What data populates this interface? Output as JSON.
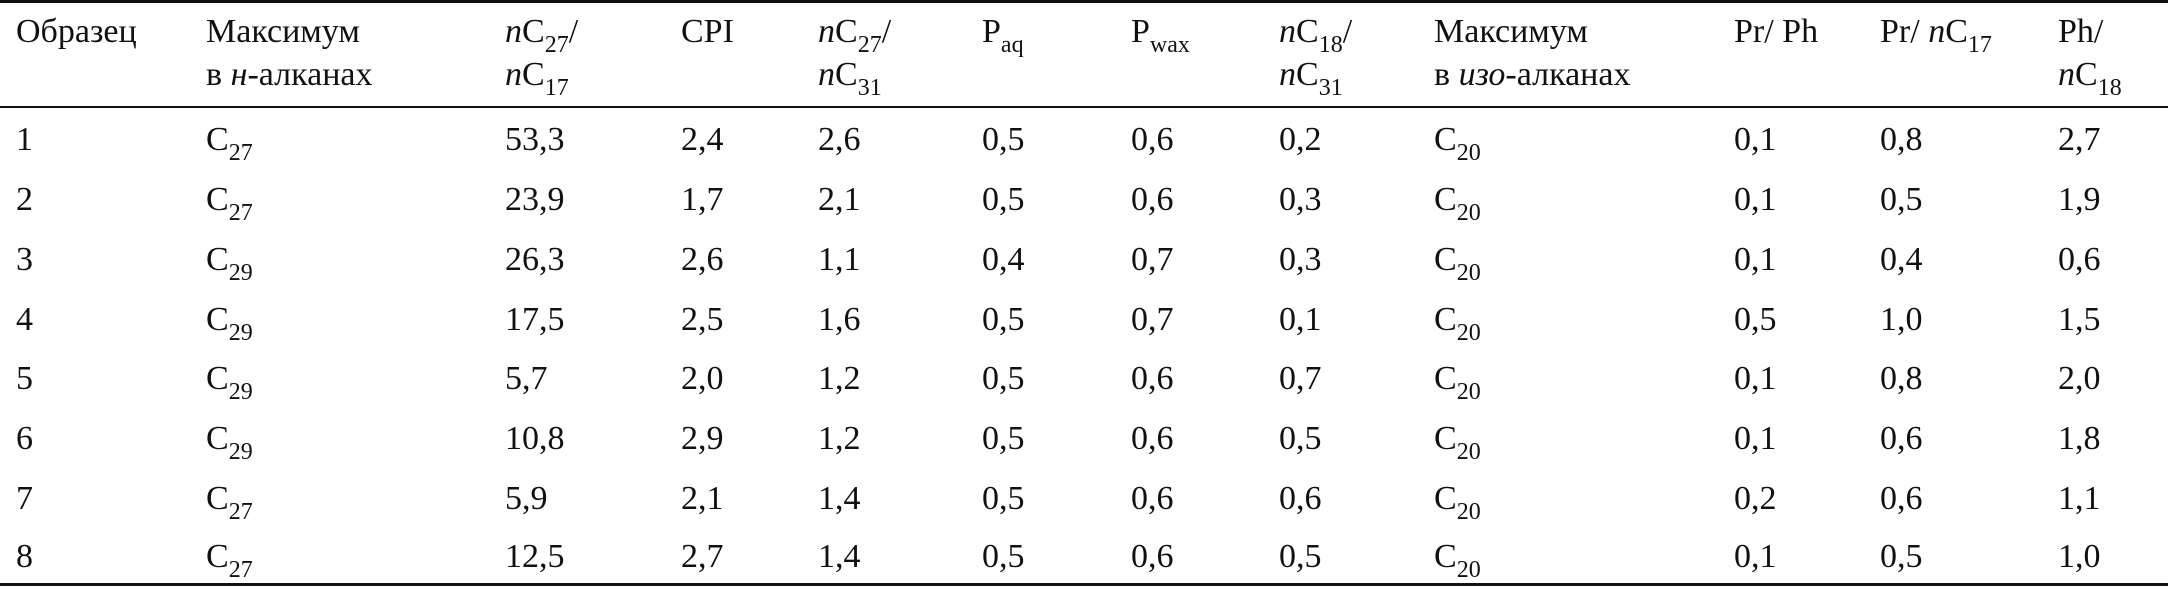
{
  "header": {
    "sample": "Образец",
    "max_n_alkanes_line1": "Максимум",
    "max_n_alkanes_line2_prefix": "в ",
    "max_n_alkanes_line2_italic": "н",
    "max_n_alkanes_line2_suffix": "-алканах",
    "ratio_27_17_n1": "n",
    "ratio_27_17_c1": "C",
    "ratio_27_17_s1": "27",
    "ratio_27_17_slash": "/",
    "ratio_27_17_n2": "n",
    "ratio_27_17_c2": "C",
    "ratio_27_17_s2": "17",
    "cpi": "CPI",
    "ratio_27_31_n1": "n",
    "ratio_27_31_c1": "C",
    "ratio_27_31_s1": "27",
    "ratio_27_31_slash": "/",
    "ratio_27_31_n2": "n",
    "ratio_27_31_c2": "C",
    "ratio_27_31_s2": "31",
    "paq_base": "P",
    "paq_sub": "aq",
    "pwax_base": "P",
    "pwax_sub": "wax",
    "ratio_18_31_n1": "n",
    "ratio_18_31_c1": "C",
    "ratio_18_31_s1": "18",
    "ratio_18_31_slash": "/",
    "ratio_18_31_n2": "n",
    "ratio_18_31_c2": "C",
    "ratio_18_31_s2": "31",
    "max_iso_line1": "Максимум",
    "max_iso_line2_prefix": "в ",
    "max_iso_line2_italic": "изо",
    "max_iso_line2_suffix": "-алканах",
    "pr_ph": "Pr/ Ph",
    "pr_nc17_prefix": "Pr/ ",
    "pr_nc17_n": "n",
    "pr_nc17_c": "C",
    "pr_nc17_s": "17",
    "ph_nc18_line1": "Ph/",
    "ph_nc18_n": "n",
    "ph_nc18_c": "C",
    "ph_nc18_s": "18"
  },
  "rows": [
    {
      "sample": "1",
      "max_n_base": "C",
      "max_n_sub": "27",
      "ratio_27_17": "53,3",
      "cpi": "2,4",
      "ratio_27_31": "2,6",
      "paq": "0,5",
      "pwax": "0,6",
      "ratio_18_31": "0,2",
      "max_iso_base": "C",
      "max_iso_sub": "20",
      "pr_ph": "0,1",
      "pr_nc17": "0,8",
      "ph_nc18": "2,7"
    },
    {
      "sample": "2",
      "max_n_base": "C",
      "max_n_sub": "27",
      "ratio_27_17": "23,9",
      "cpi": "1,7",
      "ratio_27_31": "2,1",
      "paq": "0,5",
      "pwax": "0,6",
      "ratio_18_31": "0,3",
      "max_iso_base": "C",
      "max_iso_sub": "20",
      "pr_ph": "0,1",
      "pr_nc17": "0,5",
      "ph_nc18": "1,9"
    },
    {
      "sample": "3",
      "max_n_base": "C",
      "max_n_sub": "29",
      "ratio_27_17": "26,3",
      "cpi": "2,6",
      "ratio_27_31": "1,1",
      "paq": "0,4",
      "pwax": "0,7",
      "ratio_18_31": "0,3",
      "max_iso_base": "C",
      "max_iso_sub": "20",
      "pr_ph": "0,1",
      "pr_nc17": "0,4",
      "ph_nc18": "0,6"
    },
    {
      "sample": "4",
      "max_n_base": "C",
      "max_n_sub": "29",
      "ratio_27_17": "17,5",
      "cpi": "2,5",
      "ratio_27_31": "1,6",
      "paq": "0,5",
      "pwax": "0,7",
      "ratio_18_31": "0,1",
      "max_iso_base": "C",
      "max_iso_sub": "20",
      "pr_ph": "0,5",
      "pr_nc17": "1,0",
      "ph_nc18": "1,5"
    },
    {
      "sample": "5",
      "max_n_base": "C",
      "max_n_sub": "29",
      "ratio_27_17": "5,7",
      "cpi": "2,0",
      "ratio_27_31": "1,2",
      "paq": "0,5",
      "pwax": "0,6",
      "ratio_18_31": "0,7",
      "max_iso_base": "C",
      "max_iso_sub": "20",
      "pr_ph": "0,1",
      "pr_nc17": "0,8",
      "ph_nc18": "2,0"
    },
    {
      "sample": "6",
      "max_n_base": "C",
      "max_n_sub": "29",
      "ratio_27_17": "10,8",
      "cpi": "2,9",
      "ratio_27_31": "1,2",
      "paq": "0,5",
      "pwax": "0,6",
      "ratio_18_31": "0,5",
      "max_iso_base": "C",
      "max_iso_sub": "20",
      "pr_ph": "0,1",
      "pr_nc17": "0,6",
      "ph_nc18": "1,8"
    },
    {
      "sample": "7",
      "max_n_base": "C",
      "max_n_sub": "27",
      "ratio_27_17": "5,9",
      "cpi": "2,1",
      "ratio_27_31": "1,4",
      "paq": "0,5",
      "pwax": "0,6",
      "ratio_18_31": "0,6",
      "max_iso_base": "C",
      "max_iso_sub": "20",
      "pr_ph": "0,2",
      "pr_nc17": "0,6",
      "ph_nc18": "1,1"
    },
    {
      "sample": "8",
      "max_n_base": "C",
      "max_n_sub": "27",
      "ratio_27_17": "12,5",
      "cpi": "2,7",
      "ratio_27_31": "1,4",
      "paq": "0,5",
      "pwax": "0,6",
      "ratio_18_31": "0,5",
      "max_iso_base": "C",
      "max_iso_sub": "20",
      "pr_ph": "0,1",
      "pr_nc17": "0,5",
      "ph_nc18": "1,0"
    }
  ]
}
